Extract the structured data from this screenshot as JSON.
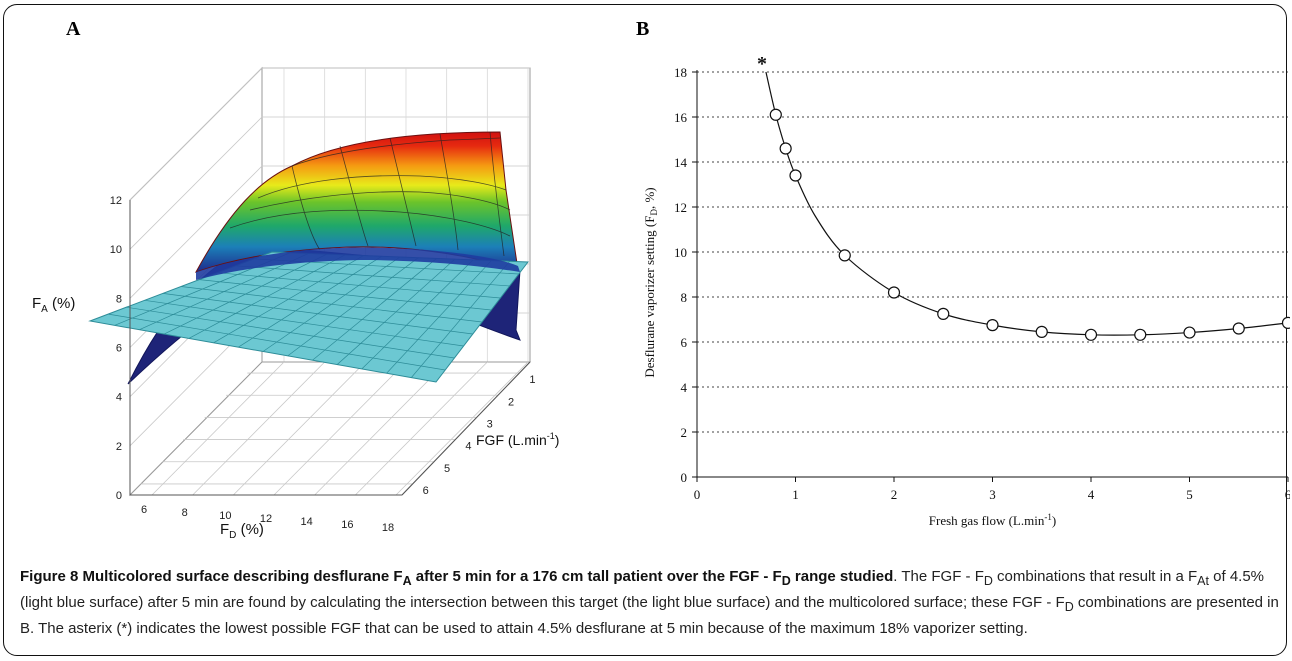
{
  "figure": {
    "panel_a_label": "A",
    "panel_b_label": "B",
    "caption": {
      "title": "Figure 8 Multicolored surface describing desflurane F",
      "title_sub_a": "A",
      "title_mid": " after 5 min for a 176 cm tall patient over the FGF - F",
      "title_sub_d": "D",
      "title_end": " range studied",
      "body_1": ". The FGF - ",
      "body_2": "F",
      "body_2_sub": "D",
      "body_3": " combinations that result in a F",
      "body_3_sub": "At",
      "body_4": " of 4.5% (light blue surface) after 5 min are found by calculating the intersection between this target (the light blue surface) and the multicolored surface; these FGF - F",
      "body_4_sub": "D",
      "body_5": " combinations are presented in B. The asterix (*) indicates the lowest possible FGF that can be used to attain 4.5% desflurane at 5 min because of the maximum 18% vaporizer setting."
    }
  },
  "panel_a": {
    "zlabel": "F",
    "zlabel_sub": "A",
    "zlabel_unit": " (%)",
    "xlabel": "F",
    "xlabel_sub": "D",
    "xlabel_unit": " (%)",
    "ylabel": "FGF (L.min",
    "ylabel_sup": "-1",
    "ylabel_end": ")",
    "z_ticks": [
      "0",
      "2",
      "4",
      "6",
      "8",
      "10",
      "12"
    ],
    "x_ticks": [
      "6",
      "8",
      "10",
      "12",
      "14",
      "16",
      "18"
    ],
    "y_ticks": [
      "1",
      "2",
      "3",
      "4",
      "5",
      "6"
    ],
    "target_plane_value": 4.5,
    "colors": {
      "plane": "#6cc8d2",
      "plane_edge": "#2d8c98",
      "dark_surface": "#1e2478",
      "grid": "#c8c8c8"
    }
  },
  "chart_data": [
    {
      "type": "surface",
      "xlabel": "F_D (%)",
      "ylabel": "FGF (L.min-1)",
      "zlabel": "F_A (%)",
      "xlim": [
        5,
        18
      ],
      "ylim": [
        0.5,
        6
      ],
      "zlim": [
        0,
        12
      ],
      "plane_z": 4.5,
      "grid": true
    },
    {
      "type": "line",
      "xlabel": "Fresh gas flow (L.min-1)",
      "ylabel": "Desflurane vaporizer setting (FD, %)",
      "xlim": [
        0,
        6
      ],
      "ylim": [
        0,
        18
      ],
      "x_ticks": [
        "0",
        "1",
        "2",
        "3",
        "4",
        "5",
        "6"
      ],
      "y_ticks": [
        "0",
        "2",
        "4",
        "6",
        "8",
        "10",
        "12",
        "14",
        "16",
        "18"
      ],
      "annotation": "*",
      "annotation_x": 0.7,
      "annotation_y": 18,
      "grid": true,
      "curve": {
        "x": [
          0.7,
          0.8,
          0.9,
          1.0,
          1.2,
          1.5,
          2.0,
          2.5,
          3.0,
          3.5,
          4.0,
          4.5,
          5.0,
          5.5,
          6.0
        ],
        "y": [
          18.0,
          16.1,
          14.6,
          13.4,
          11.6,
          9.85,
          8.2,
          7.25,
          6.75,
          6.45,
          6.32,
          6.32,
          6.42,
          6.6,
          6.85
        ]
      },
      "markers": {
        "x": [
          0.8,
          0.9,
          1.0,
          1.5,
          2.0,
          2.5,
          3.0,
          3.5,
          4.0,
          4.5,
          5.0,
          5.5,
          6.0
        ],
        "y": [
          16.1,
          14.6,
          13.4,
          9.85,
          8.2,
          7.25,
          6.75,
          6.45,
          6.32,
          6.32,
          6.42,
          6.6,
          6.85
        ]
      }
    }
  ]
}
